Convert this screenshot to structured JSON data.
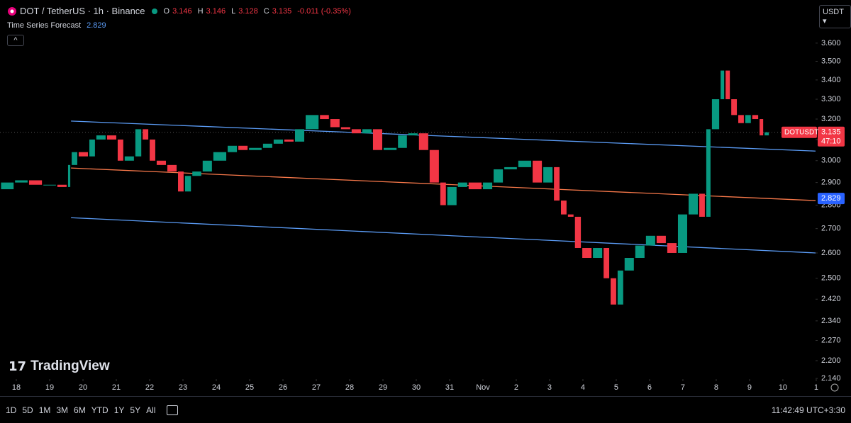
{
  "header": {
    "symbol": "DOT / TetherUS · 1h · Binance",
    "open_label": "O",
    "open": 3.146,
    "high_label": "H",
    "high": 3.146,
    "low_label": "L",
    "low": 3.128,
    "close_label": "C",
    "close": 3.135,
    "change": "-0.011 (-0.35%)",
    "indicator": "Time Series Forecast",
    "indicator_value": 2.829,
    "currency": "USDT"
  },
  "chart_data": {
    "type": "candlestick",
    "x": [
      -0.48,
      -0.06,
      0.36,
      0.79,
      1.21,
      1.53,
      1.64,
      1.85,
      2.17,
      2.38,
      2.7,
      3.02,
      3.23,
      3.55,
      3.77,
      3.98,
      4.19,
      4.51,
      4.83,
      5.04,
      5.26,
      5.57,
      5.89,
      6.32,
      6.64,
      6.96,
      7.38,
      7.7,
      8.02,
      8.34,
      8.66,
      9.09,
      9.4,
      9.72,
      10.04,
      10.36,
      10.68,
      11.0,
      11.43,
      11.74,
      12.06,
      12.38,
      12.7,
      12.91,
      13.23,
      13.55,
      13.98,
      14.3,
      14.62,
      15.04,
      15.47,
      15.79,
      16.11,
      16.32,
      16.53,
      16.74,
      16.96,
      17.28,
      17.6,
      17.81,
      18.02,
      18.23,
      18.55,
      18.87,
      19.19,
      19.51,
      19.83,
      20.15,
      20.47,
      20.68,
      20.85,
      21.11,
      21.26,
      21.43,
      21.64,
      21.85,
      22.06,
      22.28,
      22.43,
      22.6
    ],
    "values": [
      2.87,
      2.9,
      2.91,
      2.89,
      2.89,
      2.88,
      2.98,
      3.04,
      3.02,
      3.1,
      3.12,
      3.1,
      3.0,
      3.02,
      3.15,
      3.1,
      3.0,
      2.98,
      2.95,
      2.86,
      2.93,
      2.95,
      3.0,
      3.04,
      3.07,
      3.05,
      3.06,
      3.08,
      3.1,
      3.09,
      3.15,
      3.22,
      3.2,
      3.16,
      3.15,
      3.13,
      3.15,
      3.05,
      3.06,
      3.12,
      3.13,
      3.05,
      2.9,
      2.8,
      2.88,
      2.9,
      2.87,
      2.9,
      2.96,
      2.97,
      3.0,
      2.9,
      2.97,
      2.82,
      2.76,
      2.75,
      2.62,
      2.58,
      2.62,
      2.5,
      2.4,
      2.53,
      2.58,
      2.63,
      2.67,
      2.64,
      2.6,
      2.76,
      2.85,
      2.75,
      3.15,
      3.3,
      3.45,
      3.3,
      3.22,
      3.18,
      3.22,
      3.2,
      3.12,
      3.135
    ],
    "up_color": "#089981",
    "down_color": "#f23645",
    "log_scale": true,
    "xlim": [
      -0.49,
      23.98
    ],
    "ylim": [
      2.138,
      3.849
    ],
    "xticks": [
      {
        "value": 0,
        "label": "18"
      },
      {
        "value": 1,
        "label": "19"
      },
      {
        "value": 2,
        "label": "20"
      },
      {
        "value": 3,
        "label": "21"
      },
      {
        "value": 4,
        "label": "22"
      },
      {
        "value": 5,
        "label": "23"
      },
      {
        "value": 6,
        "label": "24"
      },
      {
        "value": 7,
        "label": "25"
      },
      {
        "value": 8,
        "label": "26"
      },
      {
        "value": 9,
        "label": "27"
      },
      {
        "value": 10,
        "label": "28"
      },
      {
        "value": 11,
        "label": "29"
      },
      {
        "value": 12,
        "label": "30"
      },
      {
        "value": 13,
        "label": "31"
      },
      {
        "value": 14,
        "label": "Nov"
      },
      {
        "value": 15,
        "label": "2"
      },
      {
        "value": 16,
        "label": "3"
      },
      {
        "value": 17,
        "label": "4"
      },
      {
        "value": 18,
        "label": "5"
      },
      {
        "value": 19,
        "label": "6"
      },
      {
        "value": 20,
        "label": "7"
      },
      {
        "value": 21,
        "label": "8"
      },
      {
        "value": 22,
        "label": "9"
      },
      {
        "value": 23,
        "label": "10"
      },
      {
        "value": 24,
        "label": "1"
      }
    ],
    "yticks": [
      {
        "value": 3.6,
        "label": "3.600"
      },
      {
        "value": 3.5,
        "label": "3.500"
      },
      {
        "value": 3.4,
        "label": "3.400"
      },
      {
        "value": 3.3,
        "label": "3.300"
      },
      {
        "value": 3.2,
        "label": "3.200"
      },
      {
        "value": 3.1,
        "label": "3.100"
      },
      {
        "value": 3.0,
        "label": "3.000"
      },
      {
        "value": 2.9,
        "label": "2.900"
      },
      {
        "value": 2.8,
        "label": "2.800"
      },
      {
        "value": 2.7,
        "label": "2.700"
      },
      {
        "value": 2.6,
        "label": "2.600"
      },
      {
        "value": 2.5,
        "label": "2.500"
      },
      {
        "value": 2.42,
        "label": "2.420"
      },
      {
        "value": 2.34,
        "label": "2.340"
      },
      {
        "value": 2.27,
        "label": "2.270"
      },
      {
        "value": 2.2,
        "label": "2.200"
      },
      {
        "value": 2.14,
        "label": "2.140"
      }
    ],
    "forecast": {
      "x": [
        1.64,
        23.98
      ],
      "upper": [
        3.19,
        3.045
      ],
      "middle": [
        2.966,
        2.82
      ],
      "lower": [
        2.746,
        2.6
      ],
      "band_color": "#5b9cf6",
      "middle_color": "#f7784a"
    },
    "last_price": {
      "symbol": "DOTUSDT",
      "value": 3.135,
      "countdown": "47:10",
      "color": "#f23645"
    },
    "forecast_value": 2.829,
    "forecast_badge_color": "#2962ff"
  },
  "watermark": "TradingView",
  "toolbar": {
    "ranges": [
      "1D",
      "5D",
      "1M",
      "3M",
      "6M",
      "YTD",
      "1Y",
      "5Y",
      "All"
    ],
    "clock": "11:42:49 UTC+3:30"
  }
}
